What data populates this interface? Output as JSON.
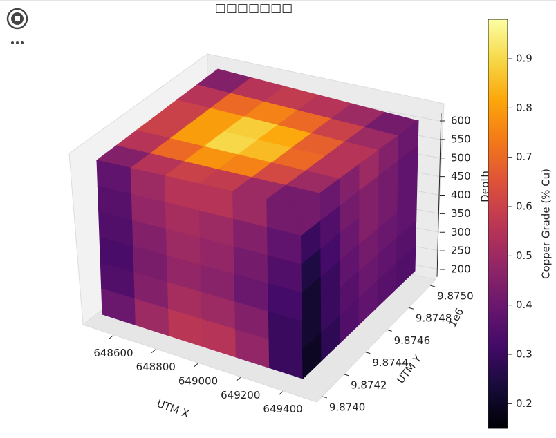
{
  "chart_data": {
    "type": "scatter3d",
    "title": "□□□□□□□",
    "xlabel": "UTM X",
    "ylabel": "UTM Y",
    "zlabel": "Depth",
    "yoffset_label": "1e6",
    "xlim": [
      648450,
      649550
    ],
    "xticks": [
      648600,
      648800,
      649000,
      649200,
      649400
    ],
    "ylim": [
      9.87395,
      9.87505
    ],
    "yticks": [
      {
        "value": 9.874,
        "label": "9.8740"
      },
      {
        "value": 9.8742,
        "label": "9.8742"
      },
      {
        "value": 9.8744,
        "label": "9.8744"
      },
      {
        "value": 9.8746,
        "label": "9.8746"
      },
      {
        "value": 9.8748,
        "label": "9.8748"
      },
      {
        "value": 9.875,
        "label": "9.8750"
      }
    ],
    "zlim": [
      180,
      620
    ],
    "zticks": [
      200,
      250,
      300,
      350,
      400,
      450,
      500,
      550,
      600
    ],
    "colormap": "inferno",
    "colorbar_label": "Copper Grade (% Cu)",
    "clim": [
      0.15,
      0.98
    ],
    "cticks": [
      0.2,
      0.3,
      0.4,
      0.5,
      0.6,
      0.7,
      0.8,
      0.9
    ],
    "top": [
      [
        0.45,
        0.55,
        0.6,
        0.6,
        0.55,
        0.45
      ],
      [
        0.55,
        0.7,
        0.8,
        0.8,
        0.7,
        0.55
      ],
      [
        0.6,
        0.78,
        0.9,
        0.88,
        0.75,
        0.58
      ],
      [
        0.58,
        0.75,
        0.85,
        0.82,
        0.7,
        0.55
      ],
      [
        0.5,
        0.62,
        0.7,
        0.68,
        0.6,
        0.5
      ],
      [
        0.42,
        0.5,
        0.55,
        0.55,
        0.5,
        0.42
      ]
    ],
    "front": [
      [
        0.38,
        0.5,
        0.55,
        0.55,
        0.5,
        0.42
      ],
      [
        0.36,
        0.48,
        0.52,
        0.5,
        0.45,
        0.38
      ],
      [
        0.35,
        0.45,
        0.5,
        0.48,
        0.42,
        0.35
      ],
      [
        0.33,
        0.43,
        0.48,
        0.46,
        0.4,
        0.32
      ],
      [
        0.35,
        0.45,
        0.52,
        0.5,
        0.45,
        0.3
      ],
      [
        0.4,
        0.5,
        0.56,
        0.55,
        0.48,
        0.3
      ]
    ],
    "side": [
      [
        0.42,
        0.4,
        0.45,
        0.5,
        0.45,
        0.4
      ],
      [
        0.3,
        0.35,
        0.42,
        0.45,
        0.42,
        0.38
      ],
      [
        0.25,
        0.32,
        0.4,
        0.45,
        0.42,
        0.38
      ],
      [
        0.22,
        0.3,
        0.38,
        0.42,
        0.4,
        0.38
      ],
      [
        0.22,
        0.3,
        0.36,
        0.4,
        0.38,
        0.36
      ],
      [
        0.2,
        0.28,
        0.35,
        0.38,
        0.36,
        0.35
      ]
    ]
  }
}
